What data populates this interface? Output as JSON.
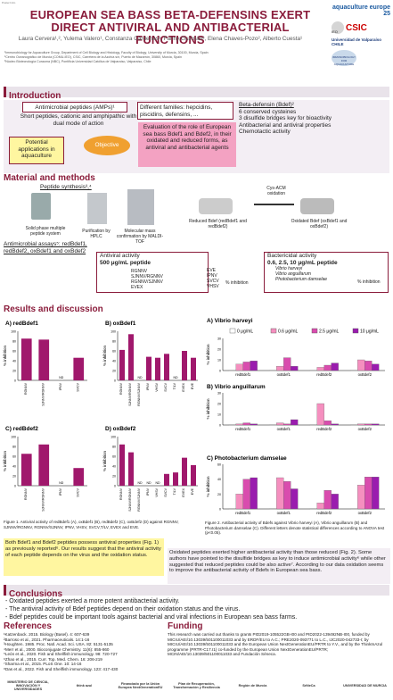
{
  "header": {
    "tag": "Poster.Intro",
    "title_line1": "EUROPEAN SEA BASS BETA-DEFENSINS EXERT",
    "title_line2": "DIRECT ANTIVIRAL AND ANTIBACTERIAL FUNCTIONS",
    "authors": "Laura Cervera¹,², Yulema Valero¹, Constanza Cárdenas³, Fanny Guzmán³, Elena Chaves-Pozo², Alberto Cuesta¹",
    "affil1": "¹Immunobiology for Aquaculture Group, Department of Cell Biology and Histology, Faculty of Biology, University of Murcia, 30100, Murcia, Spain",
    "affil2": "²Centro Oceanográfico de Murcia (COMU-IEO), CSIC, Carretera de la Azohía s/n, Puerto de Mazarrón, 30860, Murcia, Spain",
    "affil3": "³Núcleo Biotecnología Curauma (NBC), Pontificia Universidad Católica de Valparaíso, Valparaíso, Chile"
  },
  "logos": {
    "aquaculture": "aquaculture europe 25",
    "csic": "CSIC",
    "ieo": "IEO",
    "uv": "Universidad de Valparaíso CHILE",
    "immuno": "IMMUNOBIOLOGY FOR AQUACULTURE"
  },
  "intro": {
    "heading": "Introduction",
    "amp": "Antimicrobial peptides (AMPs)¹",
    "amp_desc": "Short peptides, cationic and amphipathic with dual mode of action",
    "potential": "Potential applications in aquaculture",
    "objective": "Objective",
    "families": "Different families: hepcidins, piscidins, defensins, ...",
    "evaluation": "Evaluation of the role of European sea bass Bdef1 and Bdef2, in their oxidated and reduced forms, as antiviral and antibacterial agents",
    "bdef_title": "Beta-defensin (Bdef)²",
    "bdef_l1": "6 conserved cysteines",
    "bdef_l2": "3 disulfide bridges key for bioactivity",
    "bdef_l3": "Antibacterial and antiviral properties",
    "bdef_l4": "Chemotactic activity"
  },
  "methods": {
    "heading": "Material and methods",
    "synthesis": "Peptide synthesis³,⁴",
    "spps": "Solid phase multiple peptide system",
    "hplc": "Purification by HPLC",
    "maldi": "Molecular mass confirmation by MALDI-TOF",
    "reduced": "Reduced Bdef (redBdef1 and redBdef2)",
    "cys": "Cys-ACM oxidation",
    "oxidated": "Oxidated Bdef (oxBdef1 and oxBdef2)",
    "assays": "Antimicrobial assays⁵: redBdef1, redBdef2, oxBdef1 and oxBdef2",
    "antiviral_title": "Antiviral activity",
    "antiviral_conc": "500 μg/mL peptide",
    "viruses_a": [
      "RGNNV",
      "SJNNV/RGNNV",
      "RGNNV/SJNNV",
      "EVEX"
    ],
    "viruses_b": [
      "EVE",
      "IPNV",
      "SVCV",
      "VHSV"
    ],
    "inhibition": "% inhibition",
    "bacterial_title": "Bactericidal activity",
    "bacterial_conc": "0.6, 2.5, 10 μg/mL peptide",
    "bacteria": [
      "Vibrio harveyi",
      "Vibrio anguillarum",
      "Photobacterium damselae"
    ],
    "inhibition2": "% inhibition"
  },
  "results": {
    "heading": "Results and discussion",
    "caption1": "Figure 1. Antiviral activity of redBdef1 (A), oxBdef1 (B), redBdef2 (C), oxBdef2 (D) against RGNNV, SJNNV/RGNNV, RGNNV/SJNNV, IPNV, VHSV, SVCV,T/LV, EVEX and EVE.",
    "caption2": "Figure 2. Antibacterial activity of Bdefs against Vibrio harveyi (A), Vibrio anguillarum (B) and Photobacterium damselae (C). Different letters denote statistical differences according to ANOVA test (p<0.05).",
    "text1": "Both Bdef1 and Bdef2 peptides possess antiviral properties (Fig. 1) as previously reported⁶. Our results suggest that the antiviral activity of each peptide depends on the virus and the oxidation status.",
    "text2": "Oxidated peptides exerted higher antibacterial activity than those reduced (Fig. 2). Some authors have pointed to the disulfide bridges as key to induce antimicrobial activity⁶ while other suggested that reduced peptides could be also active⁷. According to our data oxidation seems to improve the antibacterial activity of Bdefs in European sea bass."
  },
  "conclusions": {
    "heading": "Conclusions",
    "items": [
      "- Oxidated peptides exerted a more potent antibacterial activity.",
      "- The antiviral activity of Bdef peptides depend on their oxidation status and the virus.",
      "- Bdef peptides could be important tools against bacterial and viral infections in European sea bass farms."
    ]
  },
  "references": {
    "heading": "References",
    "items": [
      "¹Katzenback. 2015. Biology (Basel). 4: 607-639",
      "²Barroso et al., 2021. Pharmaceuticals. 14:1-16",
      "³Houghten. 1985. Proc. Natl. Acad. Sci. USA. 82: 5131-5135",
      "⁴Merr et al., 2000. Bioconjugate Chemistry. 11(6): 855-860",
      "⁵León et al., 2020. Fish and Shellfish immunology. 98: 720-727",
      "⁶Zhao et al., 2015. Curr. Top. Med. Chem. 16: 206-219",
      "⁷Sharma et al., 2015. PLoS One. 10: 14-16",
      "⁸Das et al., 2022. Fish and Shellfish immunology. 123: 417-430"
    ]
  },
  "funding": {
    "heading": "Funding",
    "text": "This research was carried out thanks to grants PID2019-105522GB-I00 and PID2022-139492NB-I00, funded by MICIU/AEI/10.13039/501100011033 and by ERDF/EU to A.C.; PRE2020-093771 to L.C., IJC2020-042733-I; by MICIU/AEI/10.13039/501100011033 and the European Union NextGenerationEU/PRTR to Y.V., and by the ThinkInAzul programme (PRTR-C17.I1) co-funded by the European Union NextGenerationEU/PRTR; MCIN/AEI/10.13039/501100011033 and Fundación Séneca."
  },
  "footer_logos": [
    "MINISTERIO DE CIENCIA, INNOVACIÓN Y UNIVERSIDADES",
    "think azul",
    "Financiado por la Unión Europea NextGenerationEU",
    "Plan de Recuperación, Transformación y Resiliencia",
    "Región de Murcia",
    "SéNeCa",
    "UNIVERSIDAD DE MURCIA"
  ],
  "chart_data": [
    {
      "type": "bar",
      "title": "A) redBdef1",
      "ylabel": "% inhibition",
      "ylim": [
        0,
        100
      ],
      "categories": [
        "RGNNV",
        "SJNNV/RGNNV",
        "IPNV",
        "SVCV"
      ],
      "values": [
        85,
        83,
        0,
        46
      ],
      "labels": [
        "",
        "",
        "ND",
        ""
      ]
    },
    {
      "type": "bar",
      "title": "B) oxBdef1",
      "ylabel": "% inhibition",
      "ylim": [
        0,
        100
      ],
      "categories": [
        "RGNNV",
        "SJNNV/RGNNV",
        "RGNNV/SJNNV",
        "IPNV",
        "VHSV",
        "SVCV",
        "T/LV",
        "EVEX",
        "EVE"
      ],
      "values": [
        62,
        94,
        0,
        48,
        46,
        54,
        0,
        60,
        46
      ],
      "labels": [
        "",
        "",
        "ND",
        "",
        "",
        "",
        "ND",
        "",
        ""
      ]
    },
    {
      "type": "bar",
      "title": "C) redBdef2",
      "ylabel": "% inhibition",
      "ylim": [
        0,
        100
      ],
      "categories": [
        "RGNNV",
        "SJNNV/RGNNV",
        "IPNV",
        "SVCV"
      ],
      "values": [
        65,
        84,
        0,
        36
      ],
      "labels": [
        "",
        "",
        "ND",
        ""
      ]
    },
    {
      "type": "bar",
      "title": "D) oxBdef2",
      "ylabel": "% inhibition",
      "ylim": [
        0,
        100
      ],
      "categories": [
        "RGNNV",
        "SJNNV/RGNNV",
        "RGNNV/SJNNV",
        "IPNV",
        "VHSV",
        "SVCV",
        "T/LV",
        "EVEX",
        "EVE"
      ],
      "values": [
        84,
        68,
        0,
        0,
        0,
        24,
        27,
        57,
        42
      ],
      "labels": [
        "",
        "",
        "ND",
        "ND",
        "ND",
        "",
        "",
        "",
        ""
      ]
    },
    {
      "type": "bar",
      "title": "A) Vibrio harveyi",
      "ylabel": "% inhibition",
      "ylim": [
        0,
        30
      ],
      "categories": [
        "redBdef1",
        "oxBdef1",
        "redBdef2",
        "oxBdef2"
      ],
      "legend": [
        "0 μg/mL",
        "0.6 μg/mL",
        "2.5 μg/mL",
        "10 μg/mL"
      ],
      "series": [
        {
          "name": "0 μg/mL",
          "values": [
            0,
            0,
            0,
            0
          ]
        },
        {
          "name": "0.6 μg/mL",
          "values": [
            6,
            4,
            3,
            10
          ]
        },
        {
          "name": "2.5 μg/mL",
          "values": [
            8,
            12,
            5,
            9
          ]
        },
        {
          "name": "10 μg/mL",
          "values": [
            9,
            4,
            7,
            6
          ]
        }
      ]
    },
    {
      "type": "bar",
      "title": "B) Vibrio anguillarum",
      "ylabel": "% inhibition",
      "ylim": [
        0,
        30
      ],
      "categories": [
        "redBdef1",
        "oxBdef1",
        "redBdef2",
        "oxBdef2"
      ],
      "series": [
        {
          "name": "0 μg/mL",
          "values": [
            0,
            0,
            0,
            0
          ]
        },
        {
          "name": "0.6 μg/mL",
          "values": [
            1,
            2,
            20,
            1
          ]
        },
        {
          "name": "2.5 μg/mL",
          "values": [
            2,
            1,
            4,
            1
          ]
        },
        {
          "name": "10 μg/mL",
          "values": [
            1,
            5,
            1,
            1
          ]
        }
      ]
    },
    {
      "type": "bar",
      "title": "C) Photobacterium damselae",
      "ylabel": "% inhibition",
      "ylim": [
        0,
        60
      ],
      "categories": [
        "redBdef1",
        "oxBdef1",
        "redBdef2",
        "oxBdef2"
      ],
      "series": [
        {
          "name": "0 μg/mL",
          "values": [
            0,
            0,
            0,
            0
          ]
        },
        {
          "name": "0.6 μg/mL",
          "values": [
            20,
            42,
            8,
            32
          ]
        },
        {
          "name": "2.5 μg/mL",
          "values": [
            40,
            37,
            25,
            43
          ]
        },
        {
          "name": "10 μg/mL",
          "values": [
            42,
            27,
            20,
            43
          ]
        }
      ]
    }
  ],
  "colors": {
    "accent": "#8a1c3b",
    "legend": [
      "#ffffff",
      "#f58fbf",
      "#d94cae",
      "#9a1cae"
    ],
    "orange": "#f0a030",
    "yellow": "#fff6a0"
  }
}
